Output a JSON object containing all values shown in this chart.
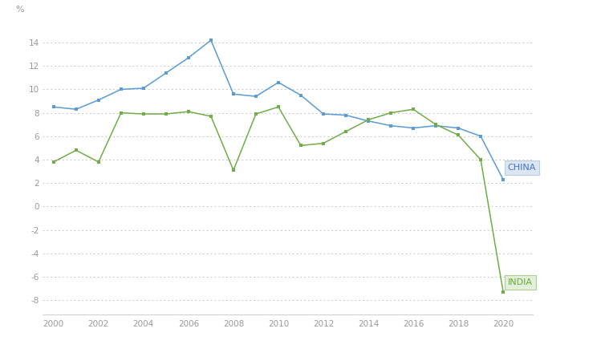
{
  "years": [
    2000,
    2001,
    2002,
    2003,
    2004,
    2005,
    2006,
    2007,
    2008,
    2009,
    2010,
    2011,
    2012,
    2013,
    2014,
    2015,
    2016,
    2017,
    2018,
    2019,
    2020
  ],
  "china": [
    8.5,
    8.3,
    9.1,
    10.0,
    10.1,
    11.4,
    12.7,
    14.2,
    9.6,
    9.4,
    10.6,
    9.5,
    7.9,
    7.8,
    7.3,
    6.9,
    6.7,
    6.9,
    6.7,
    6.0,
    2.3
  ],
  "india": [
    3.8,
    4.8,
    3.8,
    8.0,
    7.9,
    7.9,
    8.1,
    7.7,
    3.1,
    7.9,
    8.5,
    5.2,
    5.4,
    6.4,
    7.4,
    8.0,
    8.3,
    7.0,
    6.1,
    4.0,
    -7.3
  ],
  "china_color": "#5b9bd5",
  "india_color": "#70ad47",
  "background_color": "#ffffff",
  "grid_color": "#c8c8c8",
  "ylabel": "%",
  "xlim": [
    1999.5,
    2021.3
  ],
  "ylim": [
    -9.2,
    15.5
  ],
  "yticks": [
    -8,
    -6,
    -4,
    -2,
    0,
    2,
    4,
    6,
    8,
    10,
    12,
    14
  ],
  "xticks": [
    2000,
    2002,
    2004,
    2006,
    2008,
    2010,
    2012,
    2014,
    2016,
    2018,
    2020
  ],
  "china_label": "CHINA",
  "india_label": "INDIA",
  "figsize": [
    7.54,
    4.45
  ],
  "dpi": 100
}
